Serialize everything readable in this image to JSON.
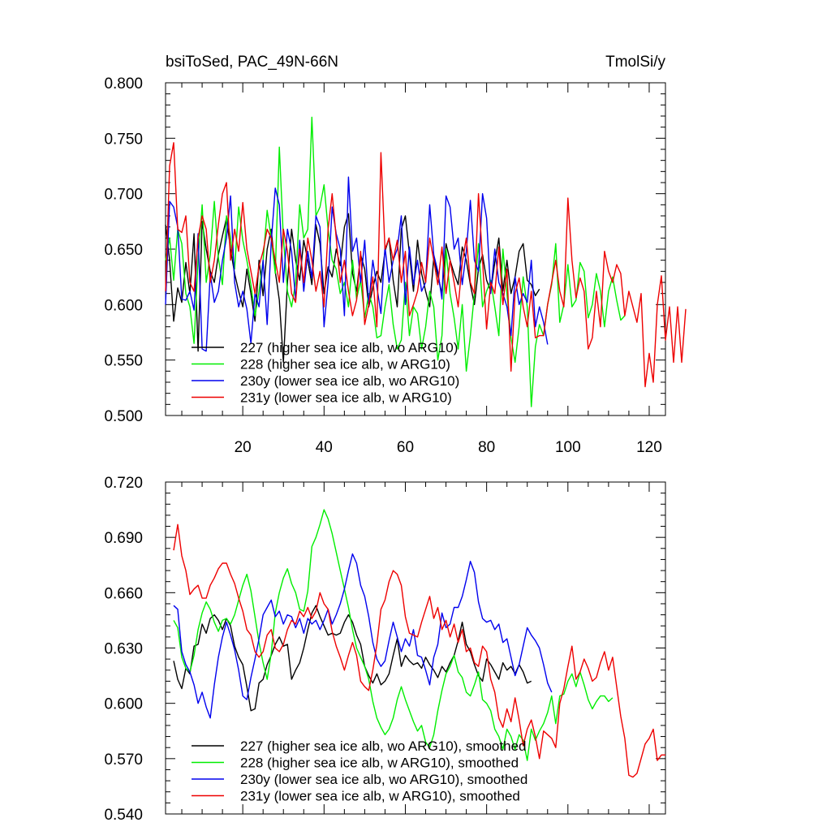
{
  "chart_data": [
    {
      "type": "line",
      "title": "bsiToSed, PAC_49N-66N",
      "units": "TmolSi/y",
      "xlabel": "",
      "ylabel": "",
      "xlim": [
        1,
        124
      ],
      "ylim": [
        0.5,
        0.8
      ],
      "xticks": [
        20,
        40,
        60,
        80,
        100,
        120
      ],
      "xtick_labels": [
        "20",
        "40",
        "60",
        "80",
        "100",
        "120"
      ],
      "yticks": [
        0.5,
        0.55,
        0.6,
        0.65,
        0.7,
        0.75,
        0.8
      ],
      "ytick_labels": [
        "0.500",
        "0.550",
        "0.600",
        "0.650",
        "0.700",
        "0.750",
        "0.800"
      ],
      "legend_position": "bottom-left",
      "series": [
        {
          "name": "227 (higher sea ice alb, wo ARG10)",
          "color": "#000000",
          "x_start": 1,
          "values": [
            0.672,
            0.64,
            0.585,
            0.615,
            0.602,
            0.638,
            0.61,
            0.664,
            0.558,
            0.675,
            0.65,
            0.63,
            0.62,
            0.645,
            0.662,
            0.678,
            0.65,
            0.628,
            0.612,
            0.598,
            0.632,
            0.61,
            0.585,
            0.64,
            0.608,
            0.65,
            0.668,
            0.63,
            0.604,
            0.548,
            0.62,
            0.668,
            0.64,
            0.622,
            0.658,
            0.64,
            0.618,
            0.672,
            0.655,
            0.61,
            0.634,
            0.625,
            0.65,
            0.635,
            0.67,
            0.682,
            0.628,
            0.612,
            0.645,
            0.632,
            0.598,
            0.615,
            0.63,
            0.62,
            0.648,
            0.66,
            0.622,
            0.598,
            0.668,
            0.68,
            0.646,
            0.612,
            0.658,
            0.628,
            0.612,
            0.598,
            0.642,
            0.626,
            0.61,
            0.655,
            0.64,
            0.628,
            0.618,
            0.652,
            0.64,
            0.618,
            0.6,
            0.632,
            0.645,
            0.622,
            0.612,
            0.638,
            0.66,
            0.612,
            0.64,
            0.61,
            0.625,
            0.648,
            0.655,
            0.622,
            0.618,
            0.608,
            0.614
          ]
        },
        {
          "name": "228 (higher sea ice alb, w ARG10)",
          "color": "#00ee00",
          "x_start": 1,
          "values": [
            0.64,
            0.66,
            0.622,
            0.668,
            0.655,
            0.61,
            0.598,
            0.565,
            0.64,
            0.69,
            0.62,
            0.645,
            0.693,
            0.642,
            0.618,
            0.68,
            0.66,
            0.632,
            0.688,
            0.658,
            0.64,
            0.618,
            0.59,
            0.612,
            0.64,
            0.685,
            0.66,
            0.628,
            0.742,
            0.66,
            0.612,
            0.598,
            0.62,
            0.69,
            0.66,
            0.668,
            0.769,
            0.68,
            0.688,
            0.708,
            0.668,
            0.64,
            0.632,
            0.61,
            0.62,
            0.598,
            0.64,
            0.605,
            0.622,
            0.588,
            0.61,
            0.598,
            0.57,
            0.572,
            0.598,
            0.618,
            0.582,
            0.56,
            0.568,
            0.62,
            0.572,
            0.598,
            0.592,
            0.56,
            0.58,
            0.612,
            0.598,
            0.55,
            0.572,
            0.65,
            0.61,
            0.588,
            0.56,
            0.6,
            0.54,
            0.572,
            0.61,
            0.655,
            0.598,
            0.612,
            0.622,
            0.598,
            0.572,
            0.65,
            0.61,
            0.57,
            0.548,
            0.58,
            0.625,
            0.598,
            0.508,
            0.562,
            0.582,
            0.572,
            0.6,
            0.618,
            0.655,
            0.584,
            0.6,
            0.636,
            0.598,
            0.604,
            0.638,
            0.63,
            0.588,
            0.6,
            0.628,
            0.612,
            0.58,
            0.612,
            0.625,
            0.604,
            0.586,
            0.59
          ]
        },
        {
          "name": "230y (lower sea ice alb, wo ARG10)",
          "color": "#0000ee",
          "x_start": 1,
          "values": [
            0.6,
            0.693,
            0.688,
            0.67,
            0.605,
            0.604,
            0.612,
            0.595,
            0.664,
            0.56,
            0.558,
            0.628,
            0.602,
            0.612,
            0.64,
            0.66,
            0.698,
            0.62,
            0.598,
            0.612,
            0.596,
            0.565,
            0.61,
            0.598,
            0.64,
            0.582,
            0.656,
            0.705,
            0.69,
            0.62,
            0.668,
            0.648,
            0.604,
            0.658,
            0.612,
            0.648,
            0.624,
            0.68,
            0.67,
            0.58,
            0.62,
            0.688,
            0.664,
            0.65,
            0.59,
            0.715,
            0.648,
            0.66,
            0.62,
            0.658,
            0.6,
            0.64,
            0.616,
            0.592,
            0.652,
            0.62,
            0.64,
            0.65,
            0.68,
            0.6,
            0.652,
            0.618,
            0.64,
            0.612,
            0.62,
            0.69,
            0.645,
            0.63,
            0.605,
            0.698,
            0.688,
            0.65,
            0.66,
            0.618,
            0.648,
            0.694,
            0.64,
            0.63,
            0.7,
            0.678,
            0.61,
            0.65,
            0.62,
            0.61,
            0.598,
            0.572,
            0.625,
            0.6,
            0.61,
            0.602,
            0.64,
            0.58,
            0.598,
            0.584,
            0.564
          ]
        },
        {
          "name": "231y (lower sea ice alb, w ARG10)",
          "color": "#ee0000",
          "x_start": 1,
          "values": [
            0.612,
            0.725,
            0.746,
            0.668,
            0.665,
            0.68,
            0.62,
            0.612,
            0.66,
            0.68,
            0.668,
            0.62,
            0.64,
            0.672,
            0.7,
            0.71,
            0.64,
            0.668,
            0.648,
            0.692,
            0.65,
            0.63,
            0.61,
            0.635,
            0.648,
            0.668,
            0.66,
            0.64,
            0.62,
            0.668,
            0.648,
            0.61,
            0.602,
            0.65,
            0.62,
            0.66,
            0.64,
            0.612,
            0.63,
            0.598,
            0.668,
            0.7,
            0.66,
            0.62,
            0.64,
            0.612,
            0.59,
            0.604,
            0.648,
            0.582,
            0.6,
            0.625,
            0.58,
            0.737,
            0.65,
            0.66,
            0.64,
            0.658,
            0.62,
            0.648,
            0.59,
            0.6,
            0.612,
            0.638,
            0.62,
            0.66,
            0.64,
            0.618,
            0.652,
            0.61,
            0.64,
            0.62,
            0.598,
            0.638,
            0.66,
            0.62,
            0.61,
            0.7,
            0.64,
            0.578,
            0.62,
            0.61,
            0.652,
            0.6,
            0.632,
            0.54,
            0.61,
            0.624,
            0.598,
            0.58,
            0.612,
            0.57,
            0.572,
            0.572,
            0.6,
            0.62,
            0.64,
            0.612,
            0.598,
            0.696,
            0.64,
            0.606,
            0.624,
            0.612,
            0.56,
            0.57,
            0.612,
            0.58,
            0.648,
            0.63,
            0.62,
            0.636,
            0.628,
            0.59,
            0.612,
            0.598,
            0.584,
            0.61,
            0.526,
            0.556,
            0.53,
            0.6,
            0.626,
            0.568,
            0.598,
            0.548,
            0.598,
            0.548,
            0.596
          ]
        }
      ]
    },
    {
      "type": "line",
      "title": "",
      "xlabel": "",
      "ylabel": "",
      "xlim": [
        1,
        124
      ],
      "ylim": [
        0.54,
        0.72
      ],
      "xticks": [
        20,
        40,
        60,
        80,
        100,
        120
      ],
      "xtick_labels": [],
      "yticks": [
        0.54,
        0.57,
        0.6,
        0.63,
        0.66,
        0.69,
        0.72
      ],
      "ytick_labels": [
        "0.540",
        "0.570",
        "0.600",
        "0.630",
        "0.660",
        "0.690",
        "0.720"
      ],
      "legend_position": "bottom-left",
      "series": [
        {
          "name": "227 (higher sea ice alb, wo ARG10), smoothed",
          "color": "#000000",
          "x_start": 3,
          "values": [
            0.623,
            0.613,
            0.608,
            0.619,
            0.616,
            0.631,
            0.632,
            0.643,
            0.638,
            0.646,
            0.648,
            0.645,
            0.64,
            0.646,
            0.642,
            0.631,
            0.625,
            0.621,
            0.609,
            0.596,
            0.597,
            0.611,
            0.613,
            0.621,
            0.626,
            0.632,
            0.636,
            0.631,
            0.632,
            0.613,
            0.618,
            0.622,
            0.63,
            0.64,
            0.649,
            0.653,
            0.647,
            0.642,
            0.637,
            0.638,
            0.637,
            0.638,
            0.644,
            0.648,
            0.644,
            0.637,
            0.632,
            0.62,
            0.615,
            0.611,
            0.616,
            0.61,
            0.612,
            0.616,
            0.626,
            0.635,
            0.62,
            0.626,
            0.623,
            0.621,
            0.622,
            0.619,
            0.625,
            0.621,
            0.618,
            0.614,
            0.62,
            0.617,
            0.622,
            0.626,
            0.634,
            0.644,
            0.632,
            0.628,
            0.621,
            0.615,
            0.612,
            0.624,
            0.621,
            0.617,
            0.613,
            0.622,
            0.618,
            0.62,
            0.616,
            0.621,
            0.617,
            0.611,
            0.612
          ]
        },
        {
          "name": "228 (higher sea ice alb, w ARG10), smoothed",
          "color": "#00ee00",
          "x_start": 3,
          "values": [
            0.645,
            0.641,
            0.625,
            0.619,
            0.617,
            0.626,
            0.64,
            0.649,
            0.655,
            0.651,
            0.644,
            0.639,
            0.645,
            0.646,
            0.643,
            0.648,
            0.656,
            0.664,
            0.67,
            0.661,
            0.647,
            0.633,
            0.622,
            0.613,
            0.627,
            0.649,
            0.66,
            0.668,
            0.673,
            0.665,
            0.66,
            0.651,
            0.65,
            0.661,
            0.685,
            0.69,
            0.697,
            0.705,
            0.7,
            0.692,
            0.682,
            0.672,
            0.662,
            0.652,
            0.64,
            0.63,
            0.625,
            0.62,
            0.613,
            0.601,
            0.592,
            0.587,
            0.583,
            0.586,
            0.592,
            0.602,
            0.609,
            0.602,
            0.596,
            0.59,
            0.585,
            0.588,
            0.579,
            0.576,
            0.583,
            0.596,
            0.607,
            0.616,
            0.62,
            0.626,
            0.617,
            0.614,
            0.606,
            0.604,
            0.61,
            0.617,
            0.602,
            0.6,
            0.596,
            0.586,
            0.582,
            0.575,
            0.586,
            0.582,
            0.575,
            0.583,
            0.58,
            0.569,
            0.586,
            0.58,
            0.585,
            0.589,
            0.595,
            0.604,
            0.589,
            0.604,
            0.605,
            0.612,
            0.616,
            0.609,
            0.617,
            0.61,
            0.602,
            0.597,
            0.601,
            0.604,
            0.604,
            0.601,
            0.603
          ]
        },
        {
          "name": "230y (lower sea ice alb, wo ARG10), smoothed",
          "color": "#0000ee",
          "x_start": 3,
          "values": [
            0.653,
            0.651,
            0.628,
            0.621,
            0.617,
            0.61,
            0.6,
            0.606,
            0.598,
            0.592,
            0.61,
            0.625,
            0.636,
            0.644,
            0.637,
            0.629,
            0.618,
            0.604,
            0.602,
            0.614,
            0.624,
            0.635,
            0.648,
            0.652,
            0.656,
            0.647,
            0.65,
            0.643,
            0.648,
            0.647,
            0.641,
            0.646,
            0.638,
            0.646,
            0.643,
            0.645,
            0.64,
            0.645,
            0.651,
            0.643,
            0.648,
            0.654,
            0.662,
            0.672,
            0.681,
            0.676,
            0.664,
            0.658,
            0.647,
            0.633,
            0.624,
            0.62,
            0.623,
            0.634,
            0.644,
            0.636,
            0.628,
            0.635,
            0.631,
            0.64,
            0.626,
            0.625,
            0.618,
            0.61,
            0.625,
            0.632,
            0.649,
            0.641,
            0.643,
            0.652,
            0.652,
            0.658,
            0.667,
            0.677,
            0.671,
            0.655,
            0.646,
            0.644,
            0.645,
            0.64,
            0.643,
            0.633,
            0.635,
            0.625,
            0.615,
            0.621,
            0.631,
            0.641,
            0.637,
            0.634,
            0.63,
            0.621,
            0.611,
            0.606
          ]
        },
        {
          "name": "231y (lower sea ice alb, w ARG10), smoothed",
          "color": "#ee0000",
          "x_start": 3,
          "values": [
            0.683,
            0.697,
            0.68,
            0.672,
            0.659,
            0.662,
            0.664,
            0.657,
            0.657,
            0.664,
            0.668,
            0.673,
            0.676,
            0.676,
            0.67,
            0.665,
            0.657,
            0.65,
            0.64,
            0.637,
            0.628,
            0.625,
            0.628,
            0.637,
            0.64,
            0.63,
            0.628,
            0.632,
            0.64,
            0.645,
            0.643,
            0.65,
            0.647,
            0.652,
            0.646,
            0.65,
            0.66,
            0.654,
            0.651,
            0.639,
            0.631,
            0.625,
            0.618,
            0.626,
            0.633,
            0.626,
            0.612,
            0.609,
            0.607,
            0.618,
            0.632,
            0.651,
            0.656,
            0.666,
            0.672,
            0.67,
            0.664,
            0.647,
            0.638,
            0.637,
            0.636,
            0.644,
            0.651,
            0.658,
            0.646,
            0.652,
            0.64,
            0.645,
            0.636,
            0.643,
            0.633,
            0.64,
            0.628,
            0.63,
            0.622,
            0.62,
            0.631,
            0.628,
            0.613,
            0.606,
            0.592,
            0.587,
            0.597,
            0.59,
            0.603,
            0.591,
            0.577,
            0.586,
            0.591,
            0.582,
            0.57,
            0.585,
            0.583,
            0.581,
            0.576,
            0.6,
            0.608,
            0.62,
            0.631,
            0.613,
            0.617,
            0.624,
            0.619,
            0.612,
            0.614,
            0.622,
            0.628,
            0.618,
            0.625,
            0.609,
            0.593,
            0.581,
            0.561,
            0.56,
            0.562,
            0.57,
            0.578,
            0.581,
            0.586,
            0.569,
            0.572,
            0.572
          ]
        }
      ]
    }
  ]
}
